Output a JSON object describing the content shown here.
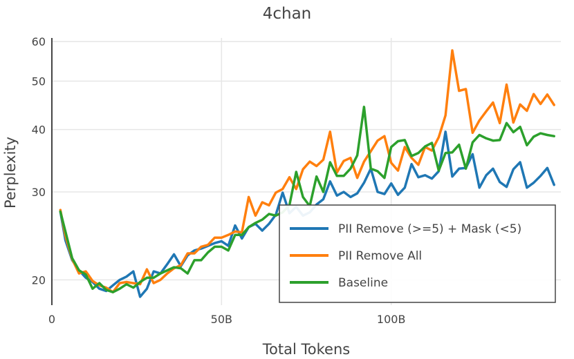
{
  "chart_data": {
    "type": "line",
    "title": "4chan",
    "xlabel": "Total Tokens",
    "ylabel": "Perplexity",
    "y_scale": "log",
    "xlim": [
      0,
      150
    ],
    "ylim": [
      17.8,
      61
    ],
    "x_ticks": [
      {
        "value": 0,
        "label": "0"
      },
      {
        "value": 50,
        "label": "50B"
      },
      {
        "value": 100,
        "label": "100B"
      }
    ],
    "y_ticks": [
      {
        "value": 20,
        "label": "20"
      },
      {
        "value": 30,
        "label": "30"
      },
      {
        "value": 40,
        "label": "40"
      },
      {
        "value": 50,
        "label": "50"
      },
      {
        "value": 60,
        "label": "60"
      }
    ],
    "grid": true,
    "legend_position": "lower-right",
    "x": [
      2.5,
      4,
      6,
      8,
      10,
      12,
      14,
      16,
      18,
      20,
      22,
      24,
      26,
      28,
      30,
      32,
      34,
      36,
      38,
      40,
      42,
      44,
      46,
      48,
      50,
      52,
      54,
      56,
      58,
      60,
      62,
      64,
      66,
      68,
      70,
      72,
      74,
      76,
      78,
      80,
      82,
      84,
      86,
      88,
      90,
      92,
      94,
      96,
      98,
      100,
      102,
      104,
      106,
      108,
      110,
      112,
      114,
      116,
      118,
      120,
      122,
      124,
      126,
      128,
      130,
      132,
      134,
      136,
      138,
      140,
      142,
      144,
      146,
      148
    ],
    "series": [
      {
        "name": "PII Remove (>=5) + Mask (<5)",
        "color": "#1f77b4",
        "values": [
          27.4,
          24.0,
          21.9,
          20.9,
          20.2,
          19.8,
          19.2,
          19.0,
          19.5,
          20.0,
          20.3,
          20.8,
          18.5,
          19.2,
          20.8,
          20.6,
          21.5,
          22.5,
          21.3,
          22.4,
          22.9,
          23.1,
          23.4,
          23.7,
          23.9,
          23.4,
          25.7,
          24.2,
          25.5,
          25.9,
          25.1,
          25.9,
          27.0,
          29.9,
          27.2,
          28.0,
          26.9,
          27.3,
          28.3,
          29.0,
          31.5,
          29.5,
          30.0,
          29.3,
          29.8,
          31.3,
          33.4,
          30.0,
          29.7,
          31.2,
          29.6,
          30.6,
          34.1,
          32.1,
          32.4,
          31.9,
          33.0,
          39.6,
          32.2,
          33.4,
          33.5,
          35.7,
          30.6,
          32.4,
          33.4,
          31.4,
          30.7,
          33.3,
          34.4,
          30.6,
          31.3,
          32.3,
          33.5,
          31.0
        ]
      },
      {
        "name": "PII Remove All",
        "color": "#ff7f0e",
        "values": [
          27.6,
          24.5,
          22.0,
          20.6,
          20.8,
          19.9,
          19.5,
          19.3,
          18.9,
          19.7,
          19.8,
          19.7,
          19.6,
          21.0,
          19.7,
          20.0,
          20.6,
          21.1,
          21.4,
          22.6,
          22.6,
          23.3,
          23.5,
          24.3,
          24.3,
          24.6,
          25.0,
          24.9,
          29.3,
          26.9,
          28.6,
          28.2,
          29.9,
          30.4,
          32.1,
          30.4,
          33.3,
          34.5,
          33.8,
          34.8,
          39.6,
          32.8,
          34.6,
          35.1,
          32.0,
          34.5,
          36.2,
          38.0,
          38.8,
          34.3,
          33.1,
          36.9,
          35.1,
          34.0,
          36.9,
          36.3,
          38.6,
          42.7,
          57.6,
          47.8,
          48.2,
          39.4,
          41.7,
          43.5,
          45.3,
          41.2,
          49.2,
          41.3,
          44.9,
          43.6,
          47.1,
          45.0,
          47.0,
          44.8
        ]
      },
      {
        "name": "Baseline",
        "color": "#2ca02c",
        "values": [
          27.4,
          25.0,
          22.1,
          20.9,
          20.5,
          19.2,
          19.7,
          19.1,
          18.9,
          19.2,
          19.6,
          19.3,
          19.8,
          20.2,
          20.2,
          20.6,
          20.9,
          21.2,
          21.1,
          20.6,
          21.9,
          21.9,
          22.7,
          23.3,
          23.3,
          22.9,
          24.6,
          24.6,
          25.5,
          26.0,
          26.4,
          27.1,
          26.9,
          27.3,
          28.2,
          32.9,
          29.3,
          28.1,
          32.2,
          30.0,
          34.4,
          32.3,
          32.3,
          33.4,
          35.5,
          44.4,
          33.4,
          33.0,
          32.0,
          36.9,
          37.9,
          38.1,
          35.4,
          35.9,
          37.0,
          37.6,
          33.1,
          35.9,
          36.0,
          37.3,
          33.4,
          37.7,
          39.0,
          38.4,
          38.0,
          38.1,
          41.2,
          39.5,
          40.5,
          37.2,
          38.7,
          39.3,
          39.0,
          38.8
        ]
      }
    ]
  }
}
